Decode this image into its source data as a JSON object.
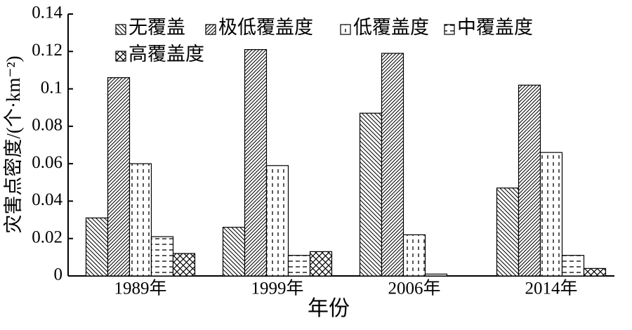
{
  "chart_data": {
    "type": "bar",
    "x_label": "年份",
    "y_label": "灾害点密度/(个·km⁻²)",
    "categories": [
      "1989年",
      "1999年",
      "2006年",
      "2014年"
    ],
    "series": [
      {
        "name": "无覆盖",
        "color": "#000000",
        "pattern": "backslash",
        "values": [
          0.031,
          0.026,
          0.087,
          0.047
        ]
      },
      {
        "name": "极低覆盖度",
        "color": "#000000",
        "pattern": "slash",
        "values": [
          0.106,
          0.121,
          0.119,
          0.102
        ]
      },
      {
        "name": "低覆盖度",
        "color": "#000000",
        "pattern": "vdash",
        "values": [
          0.06,
          0.059,
          0.022,
          0.066
        ]
      },
      {
        "name": "中覆盖度",
        "color": "#000000",
        "pattern": "hdash",
        "values": [
          0.021,
          0.011,
          0.001,
          0.011
        ]
      },
      {
        "name": "高覆盖度",
        "color": "#000000",
        "pattern": "cross",
        "values": [
          0.012,
          0.013,
          0,
          0.004
        ]
      }
    ],
    "ylim": [
      0,
      0.14
    ],
    "yticks": [
      0,
      0.02,
      0.04,
      0.06,
      0.08,
      0.1,
      0.12,
      0.14
    ],
    "grid": false,
    "legend": "top-left"
  }
}
